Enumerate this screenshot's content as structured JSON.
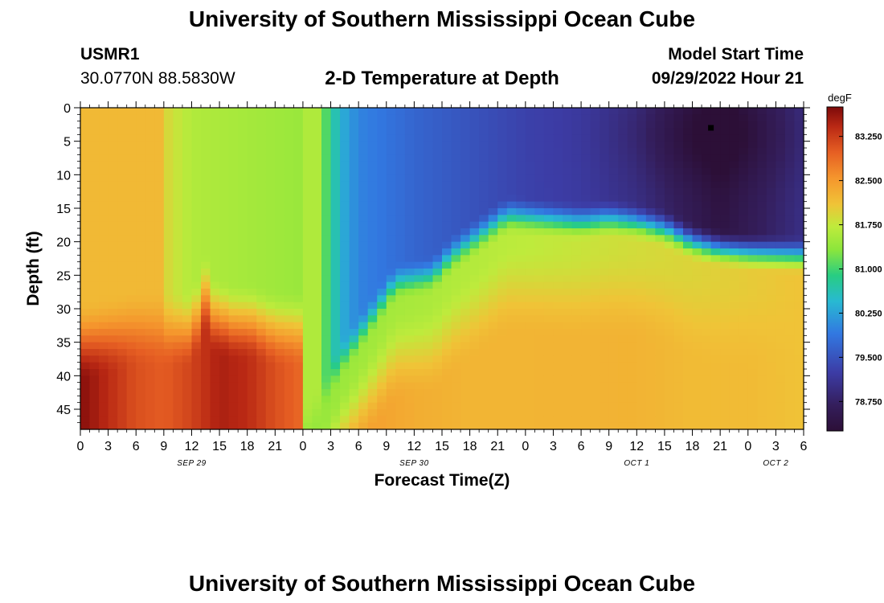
{
  "header": {
    "title": "University of Southern Mississippi Ocean Cube",
    "station_id": "USMR1",
    "station_coords": "30.0770N  88.5830W",
    "plot_title": "2-D Temperature at Depth",
    "model_start_label": "Model Start Time",
    "model_start_value": "09/29/2022 Hour 21"
  },
  "footer": {
    "title": "University of Southern Mississippi Ocean Cube"
  },
  "chart_data": {
    "type": "heatmap",
    "title": "2-D Temperature at Depth",
    "xlabel": "Forecast Time(Z)",
    "ylabel": "Depth (ft)",
    "x_ticks": [
      "0",
      "3",
      "6",
      "9",
      "12",
      "15",
      "18",
      "21",
      "0",
      "3",
      "6",
      "9",
      "12",
      "15",
      "18",
      "21",
      "0",
      "3",
      "6",
      "9",
      "12",
      "15",
      "18",
      "21",
      "0",
      "3",
      "6"
    ],
    "x_range_hours": [
      0,
      78
    ],
    "date_labels": [
      {
        "label": "SEP 29",
        "hour": 12
      },
      {
        "label": "SEP 30",
        "hour": 36
      },
      {
        "label": "OCT 1",
        "hour": 60
      },
      {
        "label": "OCT 2",
        "hour": 75
      }
    ],
    "y_ticks": [
      0,
      5,
      10,
      15,
      20,
      25,
      30,
      35,
      40,
      45
    ],
    "y_range": [
      0,
      48
    ],
    "colorbar": {
      "unit": "degF",
      "min": 78.25,
      "max": 83.75,
      "labels": [
        "83.250",
        "82.500",
        "81.750",
        "81.000",
        "80.250",
        "79.500",
        "78.750"
      ],
      "label_values": [
        83.25,
        82.5,
        81.75,
        81.0,
        80.25,
        79.5,
        78.75
      ]
    },
    "marker": {
      "hour": 68,
      "depth": 3
    },
    "thermocline_depth": [
      [
        0,
        35
      ],
      [
        6,
        33
      ],
      [
        9,
        33
      ],
      [
        12,
        33
      ],
      [
        13.5,
        28
      ],
      [
        14.5,
        31
      ],
      [
        16.5,
        32
      ],
      [
        18.5,
        32
      ],
      [
        21,
        33
      ],
      [
        24,
        33
      ],
      [
        27,
        33
      ],
      [
        30,
        32
      ]
    ],
    "upper_temp": [
      [
        0,
        82.2
      ],
      [
        9,
        82.2
      ],
      [
        10.5,
        81.9
      ],
      [
        12,
        81.7
      ],
      [
        24,
        81.6
      ],
      [
        25.5,
        81.6
      ],
      [
        27,
        80.8
      ],
      [
        28.5,
        80.3
      ],
      [
        30,
        80.0
      ],
      [
        36,
        79.7
      ],
      [
        42,
        79.5
      ],
      [
        48,
        79.3
      ],
      [
        54,
        79.2
      ],
      [
        60,
        79.0
      ],
      [
        66,
        78.6
      ],
      [
        69,
        78.4
      ],
      [
        72,
        78.6
      ],
      [
        75,
        78.8
      ],
      [
        78,
        79.0
      ]
    ],
    "middle_temp": [
      [
        0,
        82.2
      ],
      [
        6,
        82.2
      ],
      [
        9,
        81.9
      ],
      [
        12,
        81.6
      ],
      [
        24,
        81.4
      ],
      [
        78,
        82.1
      ]
    ],
    "deep_temp": [
      [
        0,
        83.7
      ],
      [
        3,
        83.4
      ],
      [
        6,
        83.1
      ],
      [
        9,
        83.0
      ],
      [
        12,
        83.2
      ],
      [
        15,
        83.5
      ],
      [
        18,
        83.4
      ],
      [
        21,
        83.1
      ],
      [
        24,
        82.9
      ],
      [
        30,
        82.6
      ],
      [
        36,
        82.4
      ],
      [
        42,
        82.3
      ],
      [
        48,
        82.3
      ],
      [
        54,
        82.3
      ],
      [
        60,
        82.3
      ],
      [
        66,
        82.2
      ],
      [
        72,
        82.2
      ],
      [
        78,
        82.1
      ]
    ],
    "mixed_layer_depth": [
      [
        0,
        48
      ],
      [
        24,
        48
      ],
      [
        26,
        44
      ],
      [
        28,
        38
      ],
      [
        31,
        32
      ],
      [
        34,
        26
      ],
      [
        36,
        25.5
      ],
      [
        38,
        25
      ],
      [
        40,
        22
      ],
      [
        42,
        20
      ],
      [
        46,
        16
      ],
      [
        50,
        16.5
      ],
      [
        54,
        17
      ],
      [
        57,
        16.5
      ],
      [
        60,
        17
      ],
      [
        63,
        18
      ],
      [
        66,
        20
      ],
      [
        69,
        21
      ],
      [
        72,
        21.5
      ],
      [
        78,
        22
      ]
    ]
  }
}
